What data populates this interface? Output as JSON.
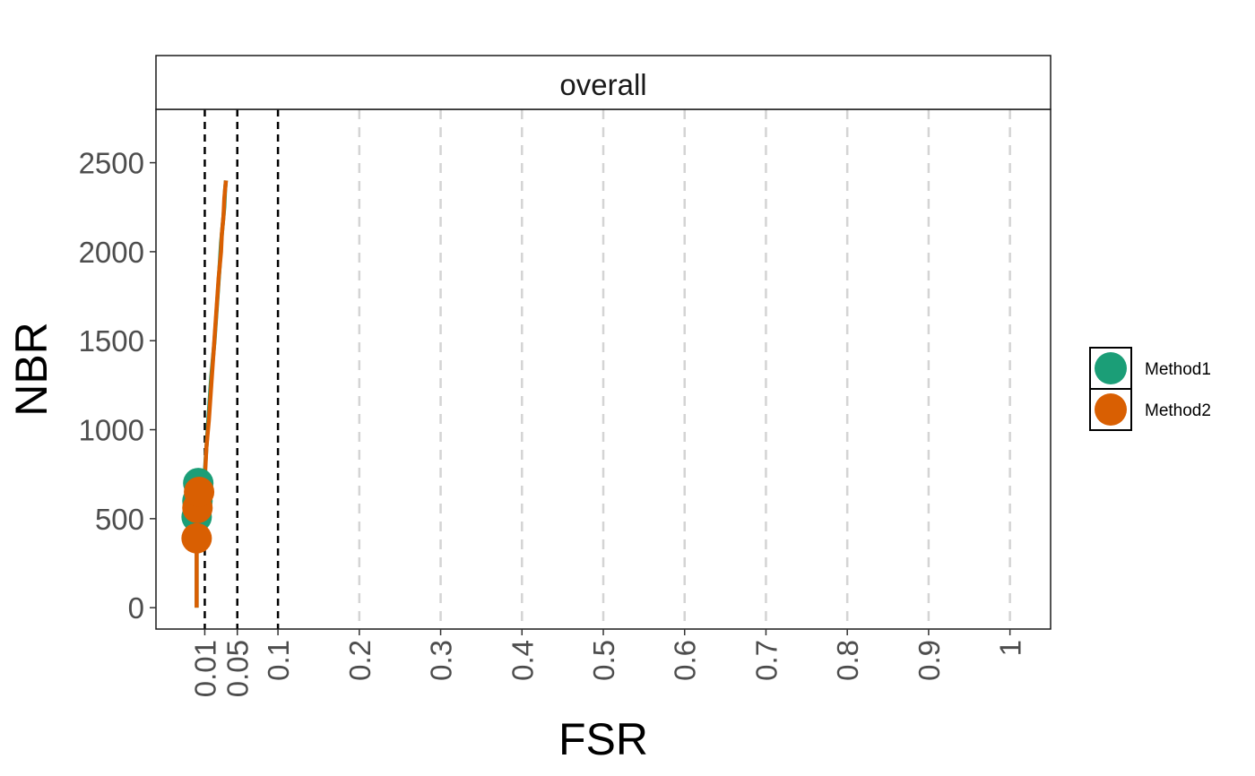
{
  "chart_data": {
    "type": "line",
    "facet": "overall",
    "xlabel": "FSR",
    "ylabel": "NBR",
    "xlim": [
      -0.05,
      1.05
    ],
    "ylim": [
      -120,
      2800
    ],
    "x_ticks": [
      0.01,
      0.05,
      0.1,
      0.2,
      0.3,
      0.4,
      0.5,
      0.6,
      0.7,
      0.8,
      0.9,
      1
    ],
    "x_tick_labels": [
      "0.01",
      "0.05",
      "0.1",
      "0.2",
      "0.3",
      "0.4",
      "0.5",
      "0.6",
      "0.7",
      "0.8",
      "0.9",
      "1"
    ],
    "y_ticks": [
      0,
      500,
      1000,
      1500,
      2000,
      2500
    ],
    "y_tick_labels": [
      "0",
      "500",
      "1000",
      "1500",
      "2000",
      "2500"
    ],
    "threshold_lines": [
      0.01,
      0.05,
      0.1
    ],
    "grid": "vertical dashed",
    "legend_position": "right",
    "series": [
      {
        "name": "Method1",
        "color": "#1b9e77",
        "x": [
          0.0,
          0.0,
          0.002,
          0.004,
          0.006,
          0.008,
          0.01,
          0.012,
          0.015,
          0.018,
          0.022,
          0.025,
          0.028,
          0.03,
          0.032,
          0.034,
          0.035,
          0.036
        ],
        "y": [
          0,
          500,
          560,
          620,
          660,
          700,
          760,
          900,
          1100,
          1300,
          1500,
          1700,
          1900,
          2050,
          2150,
          2250,
          2350,
          2400
        ],
        "points": [
          {
            "x": 0.0,
            "y": 510
          },
          {
            "x": 0.001,
            "y": 600
          },
          {
            "x": 0.002,
            "y": 700
          }
        ]
      },
      {
        "name": "Method2",
        "color": "#d95f02",
        "x": [
          0.0,
          0.0,
          0.002,
          0.004,
          0.006,
          0.008,
          0.01,
          0.012,
          0.015,
          0.018,
          0.021,
          0.024,
          0.027,
          0.03,
          0.031,
          0.033,
          0.034,
          0.036
        ],
        "y": [
          0,
          390,
          560,
          600,
          640,
          660,
          720,
          900,
          1050,
          1250,
          1450,
          1650,
          1850,
          2000,
          2100,
          2200,
          2300,
          2400
        ],
        "points": [
          {
            "x": 0.0,
            "y": 390
          },
          {
            "x": 0.001,
            "y": 560
          },
          {
            "x": 0.003,
            "y": 650
          }
        ]
      }
    ]
  }
}
